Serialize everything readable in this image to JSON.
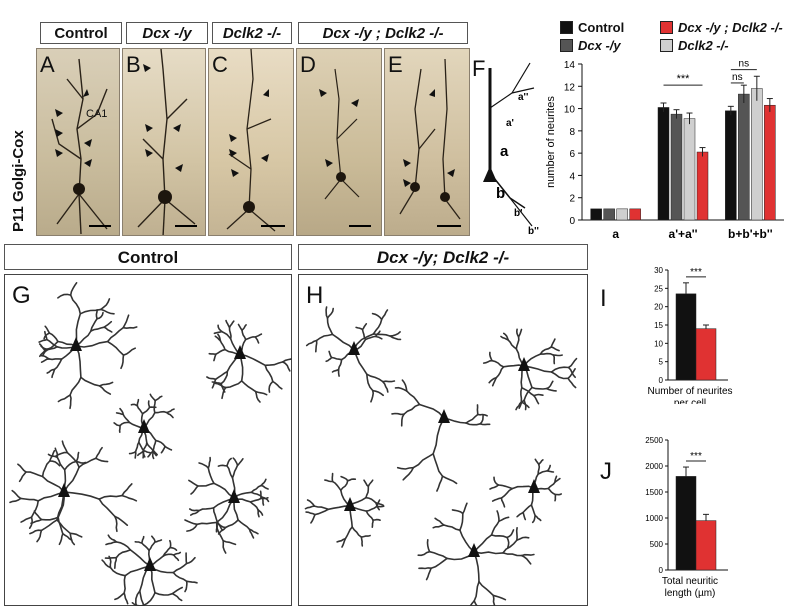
{
  "headers": {
    "control": "Control",
    "dcx": "Dcx -/y",
    "dclk2": "Dclk2 -/-",
    "double": "Dcx -/y ; Dclk2 -/-"
  },
  "side_label": "P11 Golgi-Cox",
  "panel_letters": {
    "A": "A",
    "B": "B",
    "C": "C",
    "D": "D",
    "E": "E",
    "F": "F",
    "G": "G",
    "H": "H",
    "I": "I",
    "J": "J"
  },
  "ca1_label": "CA1",
  "schematic_labels": {
    "a": "a",
    "a1": "a'",
    "a2": "a''",
    "b": "b",
    "b1": "b'",
    "b2": "b''"
  },
  "lower_headers": {
    "control": "Control",
    "double": "Dcx -/y; Dclk2 -/-"
  },
  "legend": [
    {
      "name": "Control",
      "color": "#111111"
    },
    {
      "name": "Dcx -/y ; Dclk2 -/-",
      "color": "#e03232"
    },
    {
      "name": "Dcx -/y",
      "color": "#555555"
    },
    {
      "name": "Dclk2 -/-",
      "color": "#cfcfcf"
    }
  ],
  "chart_data": [
    {
      "type": "bar",
      "panel": "F",
      "ylabel": "number of neurites",
      "categories": [
        "a",
        "a'+a''",
        "b+b'+b''"
      ],
      "ylim": [
        0,
        14
      ],
      "yticks": [
        0,
        2,
        4,
        6,
        8,
        10,
        12,
        14
      ],
      "series": [
        {
          "name": "Control",
          "color": "#111111",
          "values": [
            1,
            10.1,
            9.8
          ],
          "err": [
            0,
            0.4,
            0.4
          ]
        },
        {
          "name": "Dcx -/y",
          "color": "#555555",
          "values": [
            1,
            9.5,
            11.3
          ],
          "err": [
            0,
            0.4,
            0.8
          ]
        },
        {
          "name": "Dclk2 -/-",
          "color": "#cfcfcf",
          "values": [
            1,
            9.1,
            11.8
          ],
          "err": [
            0,
            0.5,
            1.1
          ]
        },
        {
          "name": "Dcx -/y ; Dclk2 -/-",
          "color": "#e03232",
          "values": [
            1,
            6.1,
            10.3
          ],
          "err": [
            0,
            0.4,
            0.6
          ]
        }
      ],
      "annotations": [
        "***",
        "ns",
        "ns"
      ]
    },
    {
      "type": "bar",
      "panel": "I",
      "xlabel": "Number of neurites per cell",
      "ylim": [
        0,
        30
      ],
      "yticks": [
        0,
        5,
        10,
        15,
        20,
        25,
        30
      ],
      "series": [
        {
          "name": "Control",
          "color": "#111111",
          "values": [
            23.5
          ],
          "err": [
            3
          ]
        },
        {
          "name": "Dcx -/y ; Dclk2 -/-",
          "color": "#e03232",
          "values": [
            14
          ],
          "err": [
            1
          ]
        }
      ],
      "annotations": [
        "***"
      ]
    },
    {
      "type": "bar",
      "panel": "J",
      "xlabel": "Total neuritic length (µm)",
      "ylim": [
        0,
        2500
      ],
      "yticks": [
        0,
        500,
        1000,
        1500,
        2000,
        2500
      ],
      "series": [
        {
          "name": "Control",
          "color": "#111111",
          "values": [
            1800
          ],
          "err": [
            180
          ]
        },
        {
          "name": "Dcx -/y ; Dclk2 -/-",
          "color": "#e03232",
          "values": [
            950
          ],
          "err": [
            120
          ]
        }
      ],
      "annotations": [
        "***"
      ]
    }
  ]
}
